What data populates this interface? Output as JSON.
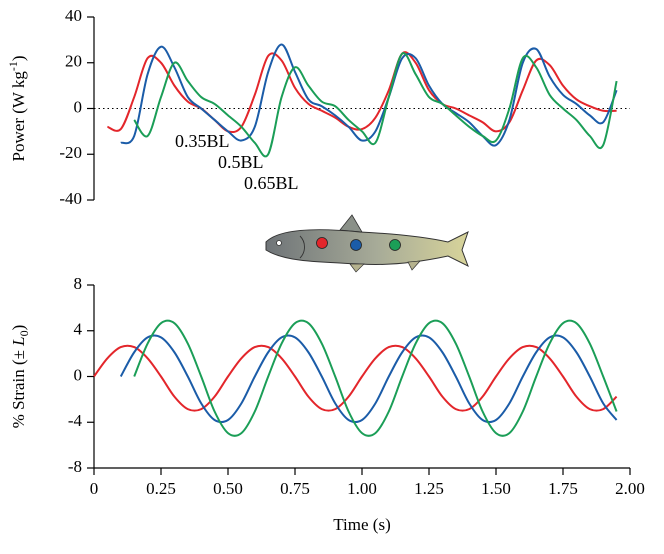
{
  "chart_data": [
    {
      "type": "line",
      "ylabel": [
        "Power (W kg",
        "-1",
        ")"
      ],
      "xlim": [
        0,
        2
      ],
      "ylim": [
        -40,
        40
      ],
      "yticks": [
        -40,
        -20,
        0,
        20,
        40
      ],
      "zero_line": 0,
      "series": [
        {
          "name": "0.35BL",
          "color": "#e3262b",
          "x": [
            0.05,
            0.1,
            0.15,
            0.2,
            0.25,
            0.3,
            0.35,
            0.4,
            0.45,
            0.5,
            0.55,
            0.6,
            0.65,
            0.7,
            0.75,
            0.8,
            0.85,
            0.9,
            0.95,
            1.0,
            1.05,
            1.1,
            1.15,
            1.2,
            1.25,
            1.3,
            1.35,
            1.4,
            1.45,
            1.5,
            1.55,
            1.6,
            1.65,
            1.7,
            1.75,
            1.8,
            1.85,
            1.9,
            1.95
          ],
          "values": [
            -8,
            -9,
            5,
            22,
            20,
            10,
            3,
            0,
            -5,
            -10,
            -8,
            6,
            23,
            21,
            9,
            2,
            -1,
            -4,
            -8,
            -9,
            -4,
            8,
            24,
            20,
            8,
            2,
            0,
            -3,
            -6,
            -10,
            -6,
            8,
            21,
            19,
            10,
            4,
            1,
            -1,
            -1
          ]
        },
        {
          "name": "0.5BL",
          "color": "#1b5ca8",
          "x": [
            0.1,
            0.15,
            0.2,
            0.25,
            0.3,
            0.35,
            0.4,
            0.45,
            0.5,
            0.55,
            0.6,
            0.65,
            0.7,
            0.75,
            0.8,
            0.85,
            0.9,
            0.95,
            1.0,
            1.05,
            1.1,
            1.15,
            1.2,
            1.25,
            1.3,
            1.35,
            1.4,
            1.45,
            1.5,
            1.55,
            1.6,
            1.65,
            1.7,
            1.75,
            1.8,
            1.85,
            1.9,
            1.95
          ],
          "values": [
            -15,
            -12,
            15,
            27,
            18,
            5,
            0,
            -5,
            -10,
            -14,
            -8,
            16,
            28,
            16,
            4,
            1,
            -3,
            -8,
            -14,
            -10,
            5,
            22,
            22,
            10,
            2,
            -2,
            -6,
            -12,
            -16,
            -5,
            20,
            26,
            14,
            6,
            2,
            -3,
            -6,
            8
          ]
        },
        {
          "name": "0.65BL",
          "color": "#1b9e57",
          "x": [
            0.15,
            0.2,
            0.25,
            0.3,
            0.35,
            0.4,
            0.45,
            0.5,
            0.55,
            0.6,
            0.65,
            0.7,
            0.75,
            0.8,
            0.85,
            0.9,
            0.95,
            1.0,
            1.05,
            1.1,
            1.15,
            1.2,
            1.25,
            1.3,
            1.35,
            1.4,
            1.45,
            1.5,
            1.55,
            1.6,
            1.65,
            1.7,
            1.75,
            1.8,
            1.85,
            1.9,
            1.95
          ],
          "values": [
            -5,
            -12,
            5,
            20,
            12,
            5,
            2,
            -3,
            -8,
            -15,
            -20,
            5,
            18,
            10,
            3,
            1,
            -5,
            -10,
            -15,
            5,
            24,
            15,
            5,
            2,
            -3,
            -8,
            -12,
            -14,
            0,
            22,
            18,
            6,
            0,
            -5,
            -12,
            -16,
            12
          ]
        }
      ]
    },
    {
      "type": "line",
      "ylabel": [
        "% Strain (± ",
        "L",
        "0",
        ")"
      ],
      "xlabel": "Time (s)",
      "xlim": [
        0,
        2
      ],
      "xticks": [
        0,
        0.25,
        {
          "value": 0.5,
          "label": "0.50"
        },
        0.75,
        {
          "value": 1,
          "label": "1.00"
        },
        1.25,
        {
          "value": 1.5,
          "label": "1.50"
        },
        1.75,
        {
          "value": 2,
          "label": "2.00"
        }
      ],
      "ylim": [
        -8,
        8
      ],
      "yticks": [
        -8,
        -4,
        0,
        4,
        8
      ],
      "series": [
        {
          "color": "#e3262b",
          "x": [
            0,
            0.05,
            0.1,
            0.15,
            0.2,
            0.25,
            0.3,
            0.35,
            0.4,
            0.45,
            0.5,
            0.55,
            0.6,
            0.65,
            0.7,
            0.75,
            0.8,
            0.85,
            0.9,
            0.95,
            1.0,
            1.05,
            1.1,
            1.15,
            1.2,
            1.25,
            1.3,
            1.35,
            1.4,
            1.45,
            1.5,
            1.55,
            1.6,
            1.65,
            1.7,
            1.75,
            1.8,
            1.85,
            1.9,
            1.95
          ],
          "values": [
            0,
            1.59,
            2.57,
            2.57,
            1.59,
            0,
            -1.76,
            -2.85,
            -2.85,
            -1.76,
            0,
            1.59,
            2.57,
            2.57,
            1.59,
            0,
            -1.76,
            -2.85,
            -2.85,
            -1.76,
            0,
            1.59,
            2.57,
            2.57,
            1.59,
            0,
            -1.76,
            -2.85,
            -2.85,
            -1.76,
            0,
            1.59,
            2.57,
            2.57,
            1.59,
            0,
            -1.76,
            -2.85,
            -2.85,
            -1.76
          ]
        },
        {
          "color": "#1b5ca8",
          "x": [
            0.1,
            0.15,
            0.2,
            0.25,
            0.3,
            0.35,
            0.4,
            0.45,
            0.5,
            0.55,
            0.6,
            0.65,
            0.7,
            0.75,
            0.8,
            0.85,
            0.9,
            0.95,
            1.0,
            1.05,
            1.1,
            1.15,
            1.2,
            1.25,
            1.3,
            1.35,
            1.4,
            1.45,
            1.5,
            1.55,
            1.6,
            1.65,
            1.7,
            1.75,
            1.8,
            1.85,
            1.9,
            1.95
          ],
          "values": [
            0,
            2.12,
            3.42,
            3.42,
            2.12,
            0,
            -2.35,
            -3.8,
            -3.8,
            -2.35,
            0,
            2.12,
            3.42,
            3.42,
            2.12,
            0,
            -2.35,
            -3.8,
            -3.8,
            -2.35,
            0,
            2.12,
            3.42,
            3.42,
            2.12,
            0,
            -2.35,
            -3.8,
            -3.8,
            -2.35,
            0,
            2.12,
            3.42,
            3.42,
            2.12,
            0,
            -2.35,
            -3.8
          ]
        },
        {
          "color": "#1b9e57",
          "x": [
            0.15,
            0.2,
            0.25,
            0.3,
            0.35,
            0.4,
            0.45,
            0.5,
            0.55,
            0.6,
            0.65,
            0.7,
            0.75,
            0.8,
            0.85,
            0.9,
            0.95,
            1.0,
            1.05,
            1.1,
            1.15,
            1.2,
            1.25,
            1.3,
            1.35,
            1.4,
            1.45,
            1.5,
            1.55,
            1.6,
            1.65,
            1.7,
            1.75,
            1.8,
            1.85,
            1.9,
            1.95
          ],
          "values": [
            0,
            2.88,
            4.66,
            4.66,
            2.88,
            0,
            -3.06,
            -4.95,
            -4.95,
            -3.06,
            0,
            2.88,
            4.66,
            4.66,
            2.88,
            0,
            -3.06,
            -4.95,
            -4.95,
            -3.06,
            0,
            2.88,
            4.66,
            4.66,
            2.88,
            0,
            -3.06,
            -4.95,
            -4.95,
            -3.06,
            0,
            2.88,
            4.66,
            4.66,
            2.88,
            0,
            -3.06
          ]
        }
      ]
    }
  ]
}
